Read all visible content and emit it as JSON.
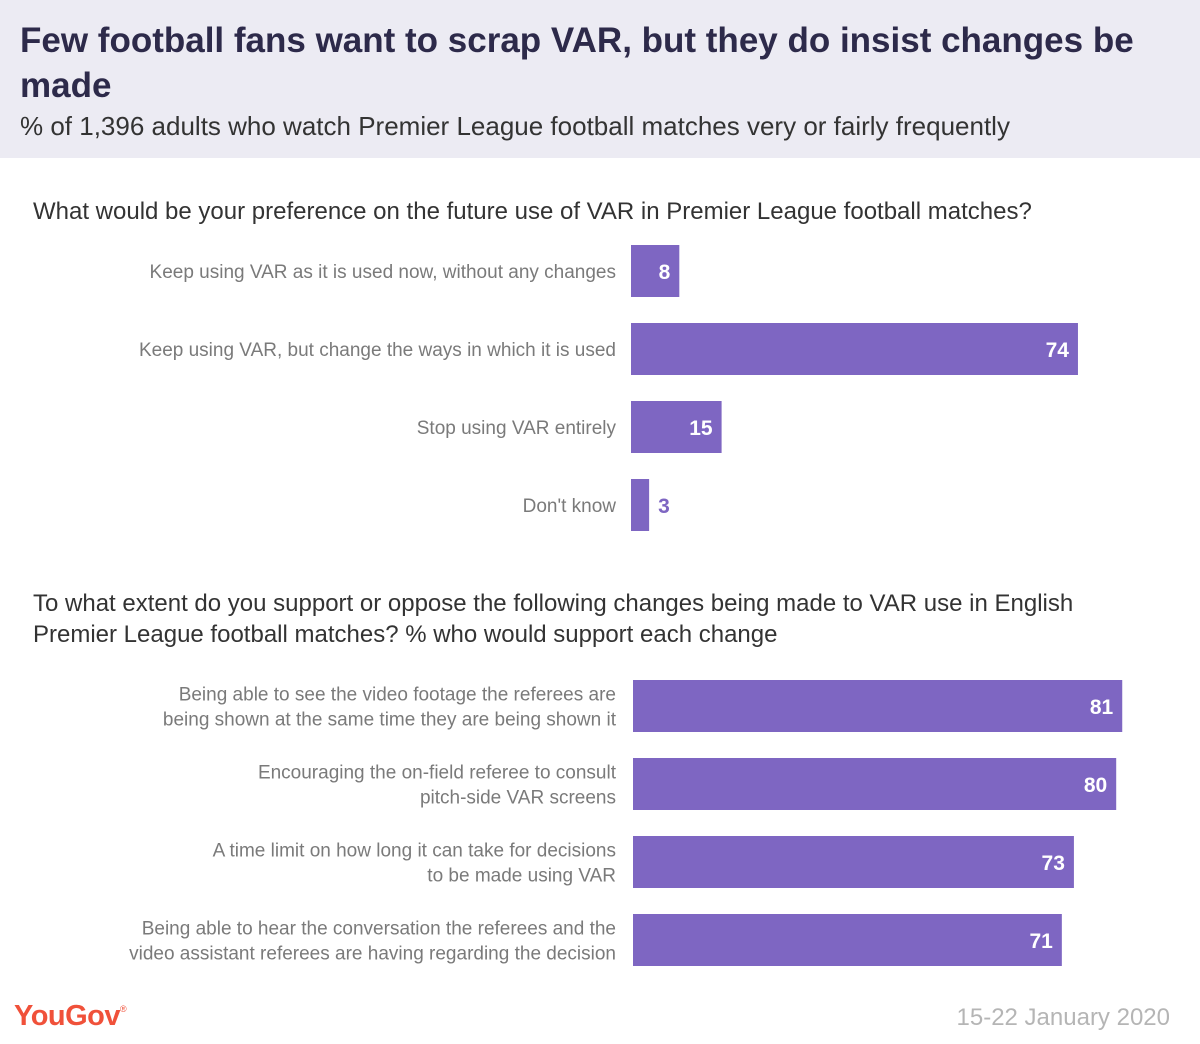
{
  "header": {
    "title": "Few football fans want to scrap VAR, but they do insist changes be made",
    "subtitle": "% of 1,396 adults who watch Premier League football matches very or fairly frequently"
  },
  "bar_color": "#7e66c2",
  "chart_data": [
    {
      "type": "bar",
      "orientation": "horizontal",
      "title": "What would be your preference on the future use of VAR in Premier League football matches?",
      "categories": [
        [
          "Keep using VAR as it is used now, without any changes"
        ],
        [
          "Keep using VAR, but change the ways in which it is used"
        ],
        [
          "Stop using VAR entirely"
        ],
        [
          "Don't know"
        ]
      ],
      "values": [
        8,
        74,
        15,
        3
      ]
    },
    {
      "type": "bar",
      "orientation": "horizontal",
      "title": "To what extent do you support or oppose the following changes being made to VAR use in English Premier League football matches? % who would support each change",
      "categories": [
        [
          "Being able to see the video footage the referees are",
          "being shown at the same time they are being shown it"
        ],
        [
          "Encouraging the on-field referee to consult",
          "pitch-side VAR screens"
        ],
        [
          "A time limit on how long it can take for decisions",
          "to be made using VAR"
        ],
        [
          "Being able to hear the conversation the referees and the",
          "video assistant referees are having regarding the decision"
        ]
      ],
      "values": [
        81,
        80,
        73,
        71
      ]
    }
  ],
  "footer": {
    "logo": "YouGov",
    "logo_mark": "®",
    "date": "15-22 January 2020"
  }
}
